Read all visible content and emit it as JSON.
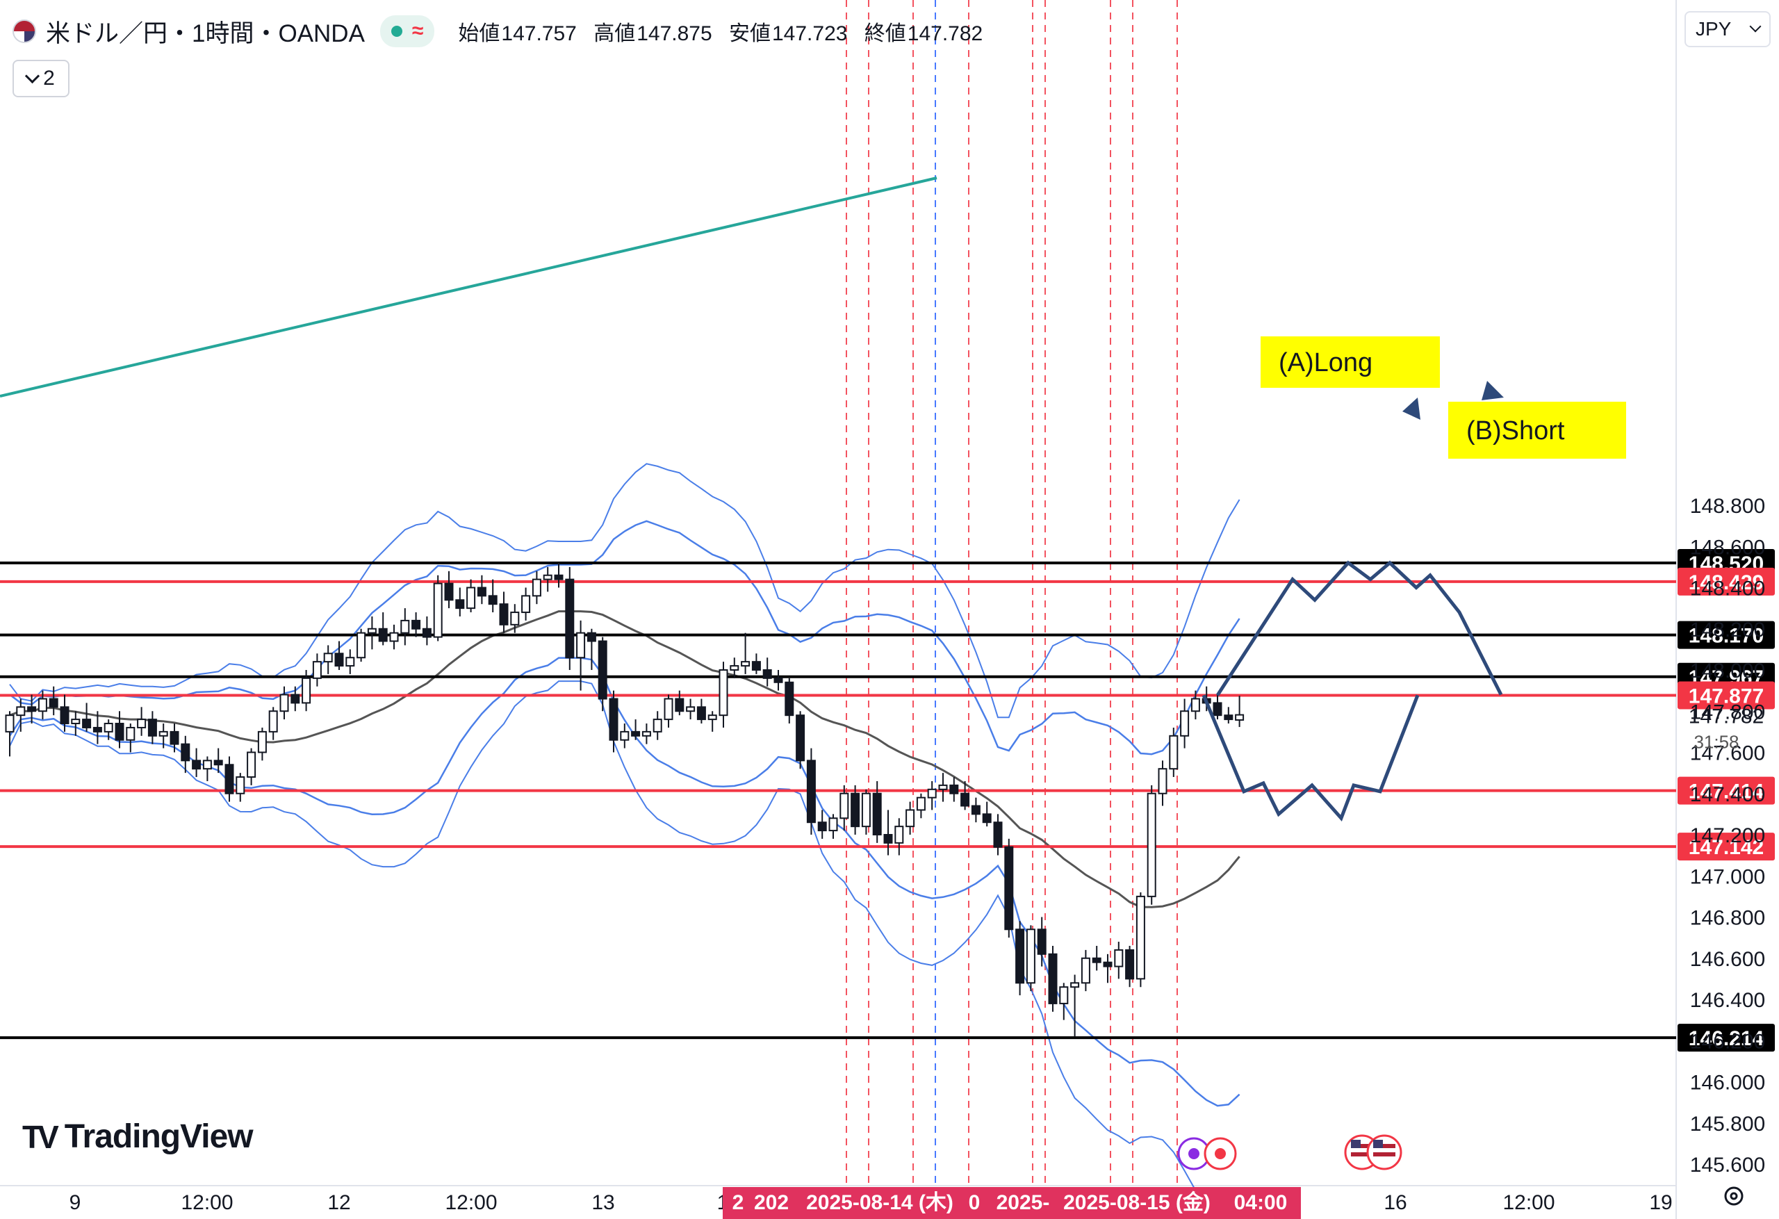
{
  "header": {
    "symbol": "米ドル／円・1時間・OANDA",
    "status_icon": "market-open-dot",
    "delay_icon": "≈",
    "ohlc": [
      {
        "key": "始値",
        "value": "147.757"
      },
      {
        "key": "高値",
        "value": "147.875"
      },
      {
        "key": "安値",
        "value": "147.723"
      },
      {
        "key": "終値",
        "value": "147.782"
      }
    ],
    "indicator_count": "2",
    "currency": "JPY"
  },
  "watermark": "TradingView",
  "chart_data": {
    "type": "candlestick",
    "symbol": "USD/JPY",
    "timeframe": "1H",
    "y_axis": {
      "ticks": [
        "148.800",
        "148.600",
        "148.400",
        "148.200",
        "148.000",
        "147.800",
        "147.600",
        "147.400",
        "147.200",
        "147.000",
        "146.800",
        "146.600",
        "146.400",
        "146.200",
        "146.000",
        "145.800",
        "145.600"
      ],
      "range": [
        145.55,
        148.95
      ]
    },
    "x_axis": {
      "labels": [
        "9",
        "12:00",
        "12",
        "12:00",
        "13",
        "1",
        "16",
        "12:00",
        "19"
      ],
      "crosshair_labels": [
        "2025-08-14 (木)",
        "2025-08-15 (金)",
        "04:00"
      ],
      "crosshair_fragments": [
        "2",
        "202",
        "0",
        "2025-"
      ]
    },
    "horizontal_levels": [
      {
        "value": 148.52,
        "label": "148.520",
        "color": "#000000"
      },
      {
        "value": 148.429,
        "label": "148.429",
        "color": "#f23645"
      },
      {
        "value": 148.17,
        "label": "148.170",
        "color": "#000000"
      },
      {
        "value": 147.967,
        "label": "147.967",
        "color": "#000000"
      },
      {
        "value": 147.877,
        "label": "147.877",
        "color": "#f23645"
      },
      {
        "value": 147.414,
        "label": "147.414",
        "color": "#f23645"
      },
      {
        "value": 147.142,
        "label": "147.142",
        "color": "#f23645"
      },
      {
        "value": 146.214,
        "label": "146.214",
        "color": "#000000"
      }
    ],
    "last_price": {
      "value": "147.782",
      "countdown": "31:58"
    },
    "annotations": [
      {
        "text": "(A)Long",
        "color": "#ffff00"
      },
      {
        "text": "(B)Short",
        "color": "#ffff00"
      }
    ],
    "candles": [
      [
        147.7,
        147.8,
        147.58,
        147.78
      ],
      [
        147.78,
        147.86,
        147.7,
        147.82
      ],
      [
        147.82,
        147.88,
        147.74,
        147.8
      ],
      [
        147.8,
        147.9,
        147.76,
        147.86
      ],
      [
        147.86,
        147.92,
        147.78,
        147.82
      ],
      [
        147.82,
        147.88,
        147.7,
        147.74
      ],
      [
        147.74,
        147.8,
        147.68,
        147.76
      ],
      [
        147.76,
        147.84,
        147.7,
        147.72
      ],
      [
        147.72,
        147.8,
        147.64,
        147.7
      ],
      [
        147.7,
        147.76,
        147.66,
        147.74
      ],
      [
        147.74,
        147.8,
        147.62,
        147.66
      ],
      [
        147.66,
        147.74,
        147.6,
        147.72
      ],
      [
        147.72,
        147.82,
        147.68,
        147.76
      ],
      [
        147.76,
        147.8,
        147.64,
        147.68
      ],
      [
        147.68,
        147.74,
        147.62,
        147.7
      ],
      [
        147.7,
        147.74,
        147.6,
        147.64
      ],
      [
        147.64,
        147.68,
        147.5,
        147.56
      ],
      [
        147.56,
        147.62,
        147.48,
        147.52
      ],
      [
        147.52,
        147.58,
        147.46,
        147.56
      ],
      [
        147.56,
        147.62,
        147.5,
        147.54
      ],
      [
        147.54,
        147.58,
        147.36,
        147.4
      ],
      [
        147.4,
        147.5,
        147.36,
        147.48
      ],
      [
        147.48,
        147.62,
        147.44,
        147.6
      ],
      [
        147.6,
        147.72,
        147.56,
        147.7
      ],
      [
        147.7,
        147.82,
        147.66,
        147.8
      ],
      [
        147.8,
        147.92,
        147.76,
        147.88
      ],
      [
        147.88,
        147.92,
        147.8,
        147.84
      ],
      [
        147.84,
        148.0,
        147.8,
        147.96
      ],
      [
        147.96,
        148.08,
        147.92,
        148.04
      ],
      [
        148.04,
        148.12,
        147.98,
        148.08
      ],
      [
        148.08,
        148.14,
        148.0,
        148.02
      ],
      [
        148.02,
        148.1,
        147.98,
        148.06
      ],
      [
        148.06,
        148.2,
        148.04,
        148.18
      ],
      [
        148.18,
        148.26,
        148.1,
        148.2
      ],
      [
        148.2,
        148.28,
        148.12,
        148.14
      ],
      [
        148.14,
        148.22,
        148.1,
        148.18
      ],
      [
        148.18,
        148.3,
        148.12,
        148.24
      ],
      [
        148.24,
        148.28,
        148.16,
        148.2
      ],
      [
        148.2,
        148.26,
        148.12,
        148.16
      ],
      [
        148.16,
        148.46,
        148.14,
        148.42
      ],
      [
        148.42,
        148.48,
        148.3,
        148.34
      ],
      [
        148.34,
        148.4,
        148.26,
        148.3
      ],
      [
        148.3,
        148.44,
        148.28,
        148.4
      ],
      [
        148.4,
        148.46,
        148.32,
        148.36
      ],
      [
        148.36,
        148.44,
        148.28,
        148.32
      ],
      [
        148.32,
        148.38,
        148.18,
        148.22
      ],
      [
        148.22,
        148.32,
        148.18,
        148.28
      ],
      [
        148.28,
        148.4,
        148.24,
        148.36
      ],
      [
        148.36,
        148.48,
        148.32,
        148.44
      ],
      [
        148.44,
        148.5,
        148.38,
        148.46
      ],
      [
        148.46,
        148.52,
        148.4,
        148.44
      ],
      [
        148.44,
        148.5,
        148.0,
        148.06
      ],
      [
        148.06,
        148.24,
        147.9,
        148.18
      ],
      [
        148.18,
        148.2,
        148.0,
        148.14
      ],
      [
        148.14,
        148.16,
        147.8,
        147.86
      ],
      [
        147.86,
        147.9,
        147.6,
        147.66
      ],
      [
        147.66,
        147.74,
        147.62,
        147.7
      ],
      [
        147.7,
        147.76,
        147.66,
        147.68
      ],
      [
        147.68,
        147.74,
        147.64,
        147.7
      ],
      [
        147.7,
        147.8,
        147.66,
        147.76
      ],
      [
        147.76,
        147.88,
        147.72,
        147.86
      ],
      [
        147.86,
        147.9,
        147.78,
        147.8
      ],
      [
        147.8,
        147.86,
        147.76,
        147.82
      ],
      [
        147.82,
        147.86,
        147.74,
        147.76
      ],
      [
        147.76,
        147.8,
        147.7,
        147.78
      ],
      [
        147.78,
        148.04,
        147.72,
        148.0
      ],
      [
        148.0,
        148.06,
        147.96,
        148.02
      ],
      [
        148.02,
        148.18,
        147.98,
        148.04
      ],
      [
        148.04,
        148.08,
        147.98,
        148.0
      ],
      [
        148.0,
        148.06,
        147.92,
        147.96
      ],
      [
        147.96,
        148.0,
        147.9,
        147.94
      ],
      [
        147.94,
        147.96,
        147.74,
        147.78
      ],
      [
        147.78,
        147.8,
        147.52,
        147.56
      ],
      [
        147.56,
        147.62,
        147.2,
        147.26
      ],
      [
        147.26,
        147.32,
        147.18,
        147.22
      ],
      [
        147.22,
        147.3,
        147.18,
        147.28
      ],
      [
        147.28,
        147.44,
        147.22,
        147.4
      ],
      [
        147.4,
        147.44,
        147.2,
        147.24
      ],
      [
        147.24,
        147.42,
        147.2,
        147.4
      ],
      [
        147.4,
        147.46,
        147.16,
        147.2
      ],
      [
        147.2,
        147.32,
        147.1,
        147.16
      ],
      [
        147.16,
        147.28,
        147.1,
        147.24
      ],
      [
        147.24,
        147.36,
        147.2,
        147.32
      ],
      [
        147.32,
        147.4,
        147.28,
        147.38
      ],
      [
        147.38,
        147.46,
        147.32,
        147.42
      ],
      [
        147.42,
        147.5,
        147.36,
        147.44
      ],
      [
        147.44,
        147.48,
        147.36,
        147.4
      ],
      [
        147.4,
        147.46,
        147.32,
        147.34
      ],
      [
        147.34,
        147.38,
        147.26,
        147.3
      ],
      [
        147.3,
        147.36,
        147.24,
        147.26
      ],
      [
        147.26,
        147.3,
        147.1,
        147.14
      ],
      [
        147.14,
        147.18,
        146.7,
        146.74
      ],
      [
        146.74,
        146.78,
        146.42,
        146.48
      ],
      [
        146.48,
        146.76,
        146.44,
        146.74
      ],
      [
        146.74,
        146.8,
        146.56,
        146.62
      ],
      [
        146.62,
        146.66,
        146.34,
        146.38
      ],
      [
        146.38,
        146.48,
        146.3,
        146.46
      ],
      [
        146.46,
        146.52,
        146.22,
        146.48
      ],
      [
        146.48,
        146.64,
        146.44,
        146.6
      ],
      [
        146.6,
        146.66,
        146.54,
        146.58
      ],
      [
        146.58,
        146.62,
        146.48,
        146.56
      ],
      [
        146.56,
        146.68,
        146.5,
        146.64
      ],
      [
        146.64,
        146.66,
        146.46,
        146.5
      ],
      [
        146.5,
        146.92,
        146.46,
        146.9
      ],
      [
        146.9,
        147.44,
        146.86,
        147.4
      ],
      [
        147.4,
        147.56,
        147.34,
        147.52
      ],
      [
        147.52,
        147.72,
        147.48,
        147.68
      ],
      [
        147.68,
        147.86,
        147.62,
        147.8
      ],
      [
        147.8,
        147.9,
        147.76,
        147.86
      ],
      [
        147.86,
        147.92,
        147.8,
        147.84
      ],
      [
        147.84,
        147.88,
        147.76,
        147.78
      ],
      [
        147.78,
        147.82,
        147.74,
        147.76
      ],
      [
        147.757,
        147.875,
        147.723,
        147.782
      ]
    ],
    "projection_paths": [
      {
        "name": "(A)Long",
        "points": [
          [
            147.877
          ],
          [
            148.44
          ],
          [
            148.34
          ],
          [
            148.52
          ],
          [
            148.44
          ],
          [
            148.52
          ],
          [
            148.4
          ],
          [
            148.46
          ],
          [
            148.28
          ],
          [
            147.88
          ]
        ]
      },
      {
        "name": "(B)Short",
        "points": [
          [
            147.877
          ],
          [
            147.41
          ],
          [
            147.45
          ],
          [
            147.3
          ],
          [
            147.44
          ],
          [
            147.28
          ],
          [
            147.44
          ],
          [
            147.41
          ],
          [
            147.877
          ]
        ]
      }
    ],
    "bands": "Bollinger Bands (blue) and middle MA (gray)",
    "trendline": {
      "color": "#26a69a"
    }
  }
}
